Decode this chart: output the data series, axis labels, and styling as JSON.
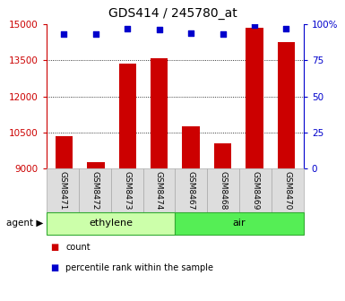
{
  "title": "GDS414 / 245780_at",
  "samples": [
    "GSM8471",
    "GSM8472",
    "GSM8473",
    "GSM8474",
    "GSM8467",
    "GSM8468",
    "GSM8469",
    "GSM8470"
  ],
  "counts": [
    10350,
    9250,
    13350,
    13600,
    10750,
    10050,
    14850,
    14250
  ],
  "percentiles": [
    93,
    93,
    97,
    96,
    94,
    93,
    99,
    97
  ],
  "ylim_left": [
    9000,
    15000
  ],
  "ylim_right": [
    0,
    100
  ],
  "yticks_left": [
    9000,
    10500,
    12000,
    13500,
    15000
  ],
  "yticks_right": [
    0,
    25,
    50,
    75,
    100
  ],
  "bar_color": "#cc0000",
  "dot_color": "#0000cc",
  "groups": [
    {
      "label": "ethylene",
      "indices": [
        0,
        1,
        2,
        3
      ],
      "color": "#ccffaa"
    },
    {
      "label": "air",
      "indices": [
        4,
        5,
        6,
        7
      ],
      "color": "#55ee55"
    }
  ],
  "group_label": "agent",
  "legend_items": [
    {
      "label": "count",
      "color": "#cc0000"
    },
    {
      "label": "percentile rank within the sample",
      "color": "#0000cc"
    }
  ],
  "title_color": "#000000",
  "left_axis_color": "#cc0000",
  "right_axis_color": "#0000cc",
  "grid_color": "#000000",
  "sample_box_color": "#dddddd",
  "sample_box_edge": "#aaaaaa",
  "group_edge_color": "#33aa33"
}
